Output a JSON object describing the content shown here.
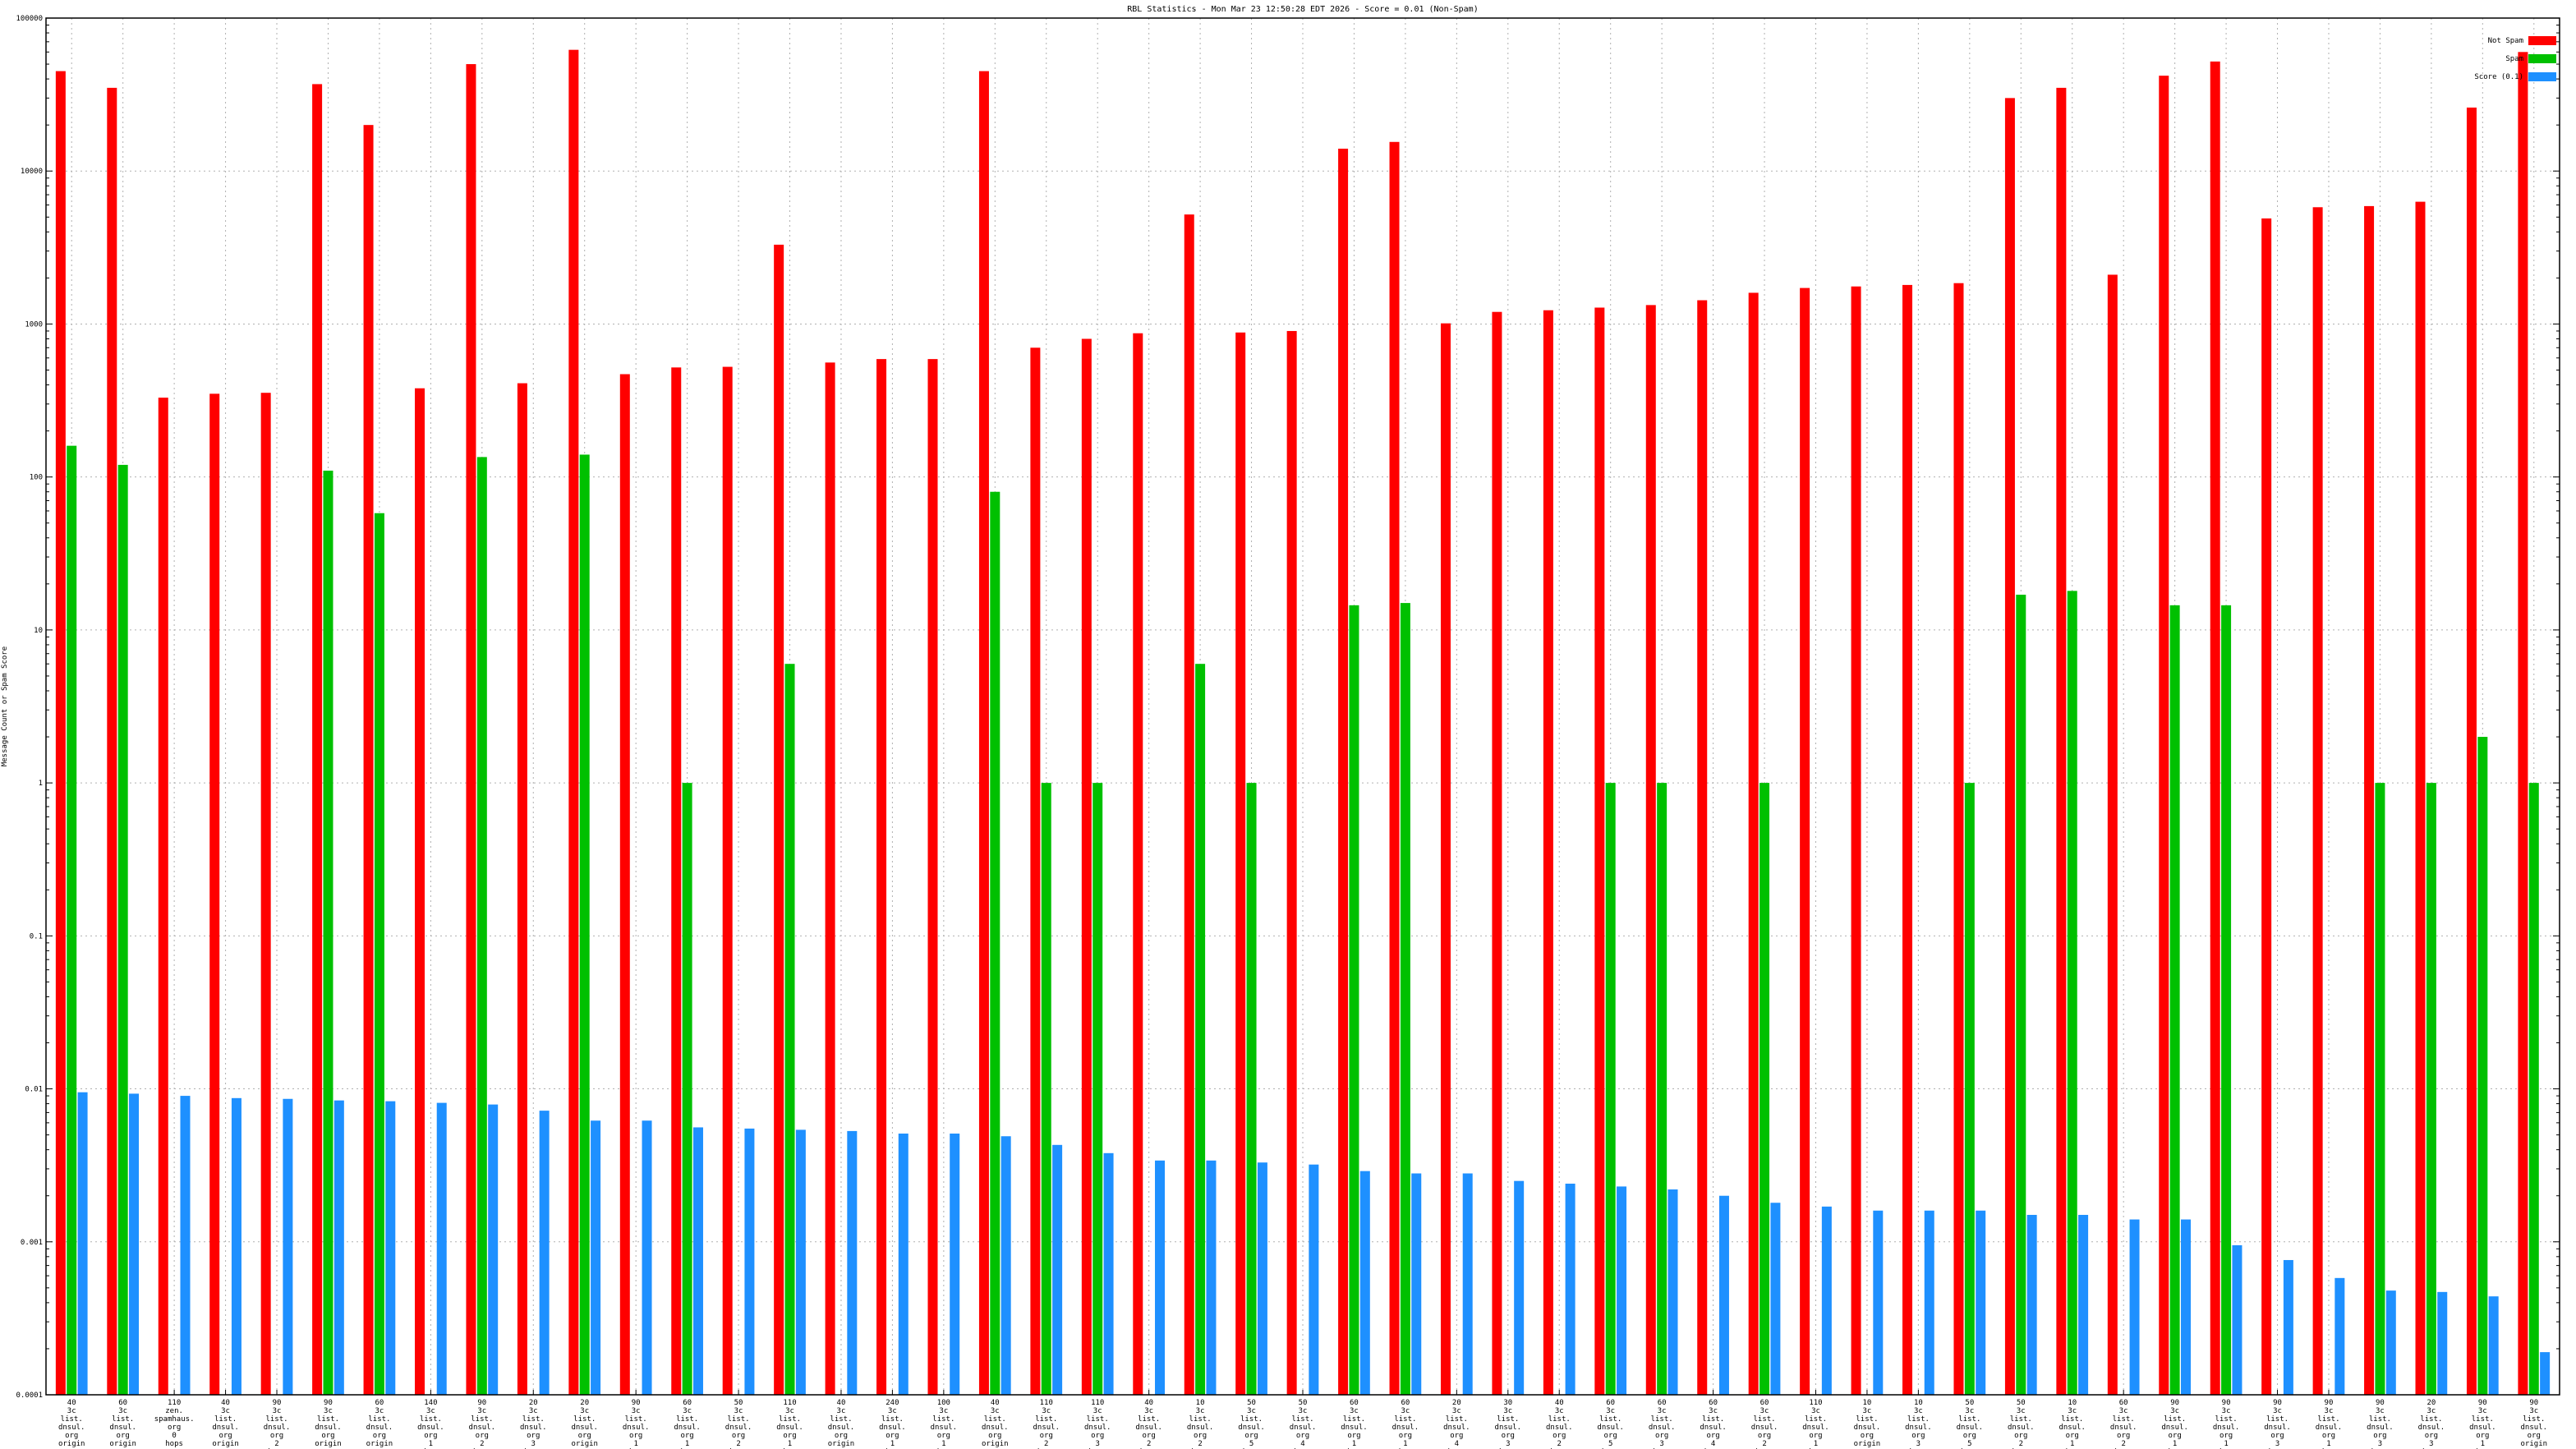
{
  "chart_data": {
    "type": "bar",
    "title": "RBL Statistics - Mon Mar 23 12:50:28 EDT 2026 - Score = 0.01 (Non-Spam)",
    "xlabel": "",
    "ylabel": "Message Count or Spam Score",
    "y_scale": "log",
    "ylim": [
      0.0001,
      100000
    ],
    "y_tick_labels": [
      "0.0001",
      "0.001",
      "0.01",
      "0.1",
      "1",
      "10",
      "100",
      "1000",
      "10000",
      "100000"
    ],
    "grid": true,
    "legend_position": "top-right",
    "categories": [
      "40 3c list. dnsul. org origin",
      "60 3c list. dnsul. org origin",
      "110 zen. spamhaus. org 0 hops",
      "40 3c list. dnsul. org origin",
      "90 3c list. dnsul. org 2 hops",
      "90 3c list. dnsul. org origin",
      "60 3c list. dnsul. org origin",
      "140 3c list. dnsul. org 1 hop",
      "90 3c list. dnsul. org 2 hops",
      "20 3c list. dnsul. org 3 hops",
      "20 3c list. dnsul. org origin",
      "90 3c list. dnsul. org 1 hop",
      "60 3c list. dnsul. org 1 hop",
      "50 3c list. dnsul. org 2 hops",
      "110 3c list. dnsul. org 1 hop",
      "40 3c list. dnsul. org origin",
      "240 3c list. dnsul. org 1 hop",
      "100 3c list. dnsul. org 1 hop",
      "40 3c list. dnsul. org origin",
      "110 3c list. dnsul. org 2 hops",
      "110 3c list. dnsul. org 3 hops",
      "40 3c list. dnsul. org 2 hops",
      "10 3c list. dnsul. org 2 hops",
      "50 3c list. dnsul. org 5 hops",
      "50 3c list. dnsul. org 4 hops",
      "60 3c list. dnsul. org 1 hop",
      "60 3c list. dnsul. org 1 hop",
      "20 3c list. dnsul. org 4 hops",
      "30 3c list. dnsul. org 3 hops",
      "40 3c list. dnsul. org 2 hops",
      "60 3c list. dnsul. org 5 hops",
      "60 3c list. dnsul. org 3 hops",
      "60 3c list. dnsul. org 4 hops",
      "60 3c list. dnsul. org 2 hops",
      "110 3c list. dnsul. org 1 hop",
      "10 3c list. dnsul. org origin",
      "10 3c list. dnsul. org 3 hops",
      "50 3c list. dnsul. org 5 hops",
      "50 3c list. dnsul. org 2 hops",
      "10 3c list. dnsul. org 1 hop",
      "60 3c list. dnsul. org 2 hops",
      "90 3c list. dnsul. org 1 hop",
      "90 3c list. dnsul. org 1 hop",
      "90 3c list. dnsul. org 3 hops",
      "90 3c list. dnsul. org 1 hop",
      "90 3c list. dnsul. org 3 hops",
      "20 3c list. dnsul. org 3 hops",
      "90 3c list. dnsul. org 1 hop",
      "90 3c list. dnsul. org origin"
    ],
    "series": [
      {
        "name": "Not Spam",
        "color": "#ff0000",
        "values": [
          45000,
          35000,
          330,
          350,
          355,
          37000,
          20000,
          380,
          50000,
          410,
          62000,
          470,
          520,
          525,
          3300,
          560,
          590,
          590,
          45000,
          700,
          800,
          870,
          5200,
          880,
          900,
          14000,
          15500,
          1010,
          1200,
          1230,
          1280,
          1330,
          1430,
          1600,
          1720,
          1760,
          1800,
          1850,
          30000,
          35000,
          2100,
          42000,
          52000,
          4900,
          5800,
          5900,
          6300,
          26000,
          60000
        ]
      },
      {
        "name": "Spam",
        "color": "#00c000",
        "values": [
          160,
          120,
          null,
          null,
          null,
          110,
          58,
          null,
          135,
          null,
          140,
          null,
          1,
          null,
          6,
          null,
          null,
          null,
          80,
          1,
          1,
          null,
          6,
          1,
          null,
          14.5,
          15,
          null,
          null,
          null,
          1,
          1,
          null,
          1,
          null,
          null,
          null,
          1,
          17,
          18,
          null,
          14.5,
          14.5,
          null,
          null,
          1,
          1,
          2,
          1
        ]
      },
      {
        "name": "Score (0.1)",
        "color": "#1e90ff",
        "values": [
          0.0095,
          0.0093,
          0.009,
          0.0087,
          0.0086,
          0.0084,
          0.0083,
          0.0081,
          0.0079,
          0.0072,
          0.0062,
          0.0062,
          0.0056,
          0.0055,
          0.0054,
          0.0053,
          0.0051,
          0.0051,
          0.0049,
          0.0043,
          0.0038,
          0.0034,
          0.0034,
          0.0033,
          0.0032,
          0.0029,
          0.0028,
          0.0028,
          0.0025,
          0.0024,
          0.0023,
          0.0022,
          0.002,
          0.0018,
          0.0017,
          0.0016,
          0.0016,
          0.0016,
          0.0015,
          0.0015,
          0.0014,
          0.0014,
          0.00095,
          0.00076,
          0.00058,
          0.00048,
          0.00047,
          0.00044,
          0.00019
        ]
      }
    ]
  }
}
